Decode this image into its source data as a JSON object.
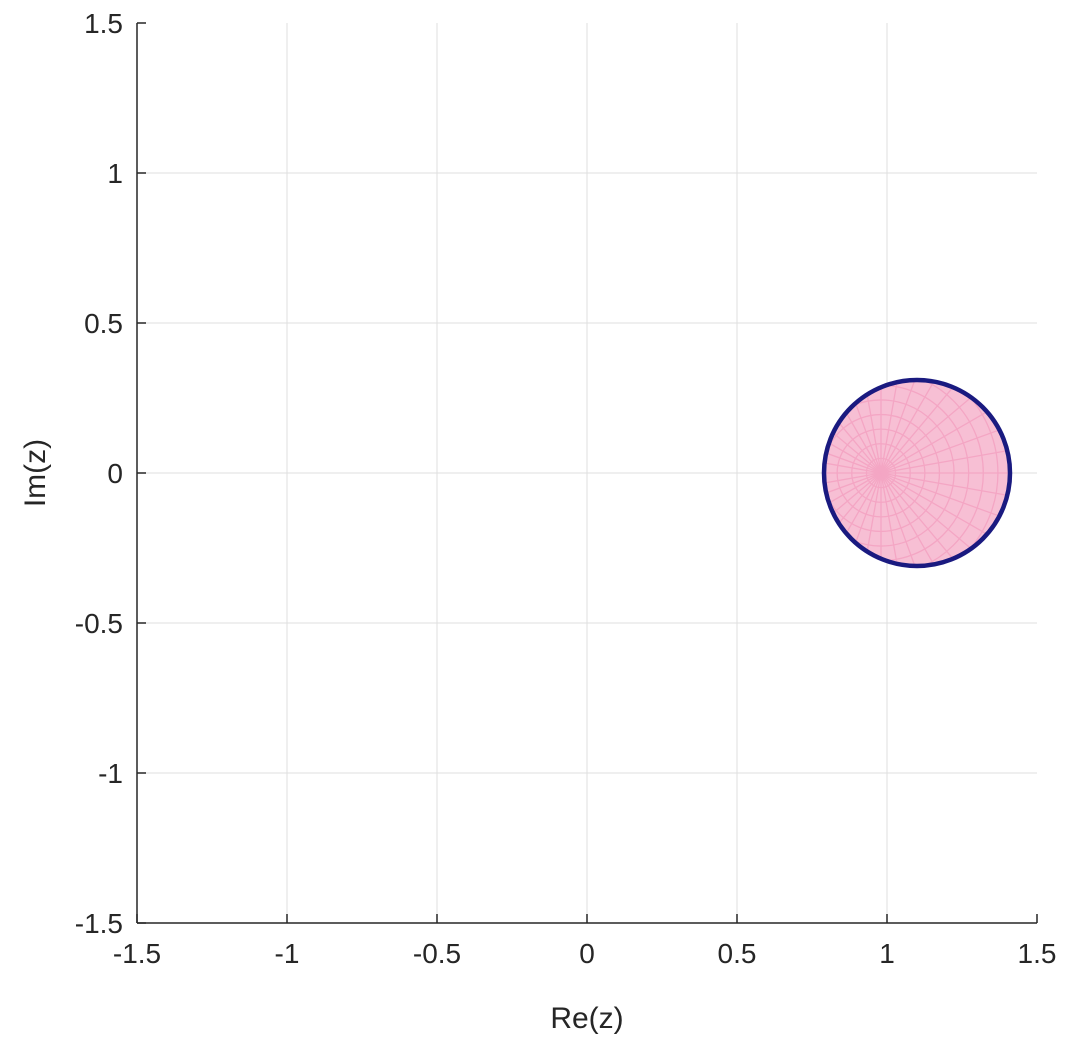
{
  "chart_data": {
    "type": "scatter",
    "title": "",
    "xlabel": "Re(z)",
    "ylabel": "Im(z)",
    "xlim": [
      -1.5,
      1.5
    ],
    "ylim": [
      -1.5,
      1.5
    ],
    "grid": true,
    "aspect": "equal",
    "x_ticks": [
      -1.5,
      -1,
      -0.5,
      0,
      0.5,
      1,
      1.5
    ],
    "y_ticks": [
      -1.5,
      -1,
      -0.5,
      0,
      0.5,
      1,
      1.5
    ],
    "x_tick_labels": [
      "-1.5",
      "-1",
      "-0.5",
      "0",
      "0.5",
      "1",
      "1.5"
    ],
    "y_tick_labels": [
      "-1.5",
      "-1",
      "-0.5",
      "0",
      "0.5",
      "1",
      "1.5"
    ],
    "region": {
      "shape": "disk",
      "center": [
        1.1,
        0
      ],
      "radius": 0.31,
      "fill_color": "#F7BFD4",
      "mesh_color": "#F4A6C4",
      "boundary_color": "#1A1A80",
      "mesh_radial_origin": [
        0.98,
        0
      ],
      "mesh_rings": 14,
      "mesh_spokes": 36
    },
    "colors": {
      "grid": "#DFDFDF",
      "axes": "#262626",
      "background": "#FFFFFF"
    }
  }
}
